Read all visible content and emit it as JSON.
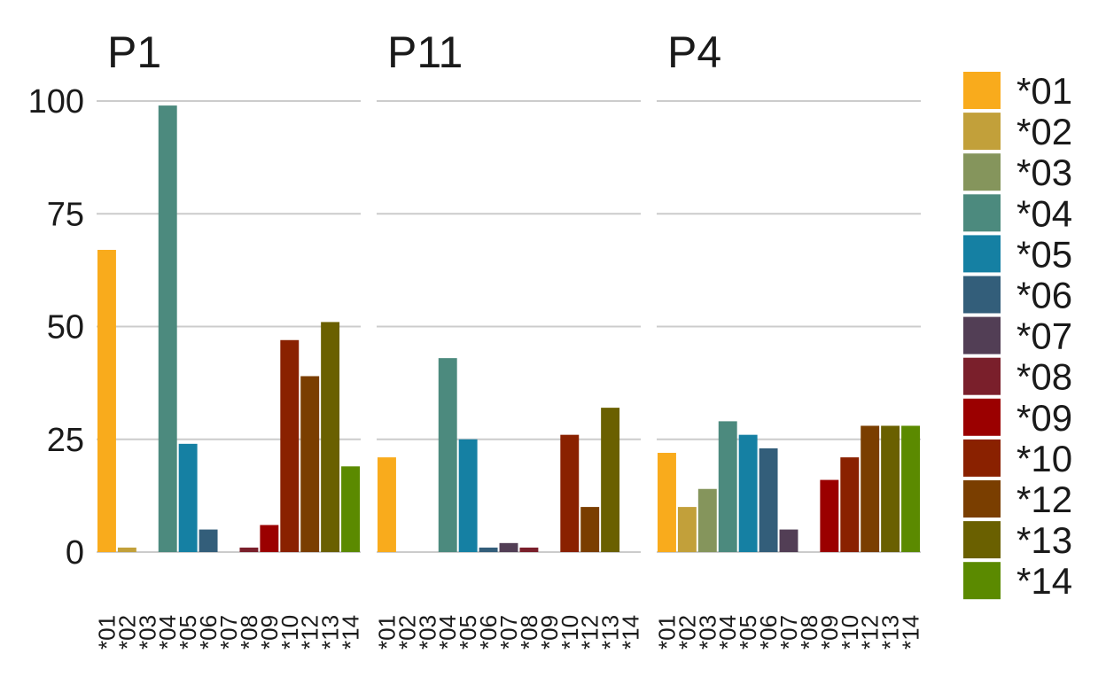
{
  "chart_data": {
    "type": "bar",
    "facets": [
      {
        "title": "P1",
        "values": [
          67,
          1,
          0,
          99,
          24,
          5,
          0,
          1,
          6,
          47,
          39,
          51,
          19
        ]
      },
      {
        "title": "P11",
        "values": [
          21,
          0,
          0,
          43,
          25,
          1,
          2,
          1,
          0,
          26,
          10,
          32,
          0
        ]
      },
      {
        "title": "P4",
        "values": [
          22,
          10,
          14,
          29,
          26,
          23,
          5,
          0,
          16,
          21,
          28,
          28,
          28
        ]
      }
    ],
    "categories": [
      "*01",
      "*02",
      "*03",
      "*04",
      "*05",
      "*06",
      "*07",
      "*08",
      "*09",
      "*10",
      "*12",
      "*13",
      "*14"
    ],
    "colors": [
      "#F9AB1C",
      "#C2A03A",
      "#85955C",
      "#4C8A7E",
      "#1580A3",
      "#335E7A",
      "#523E55",
      "#7A1F2B",
      "#9B0000",
      "#8A2100",
      "#7A3E00",
      "#6A6000",
      "#5B8A00"
    ],
    "yticks": [
      0,
      25,
      50,
      75,
      100
    ],
    "ylim": [
      0,
      100
    ],
    "grid": true,
    "legend_position": "right",
    "xlabel": "",
    "ylabel": ""
  }
}
